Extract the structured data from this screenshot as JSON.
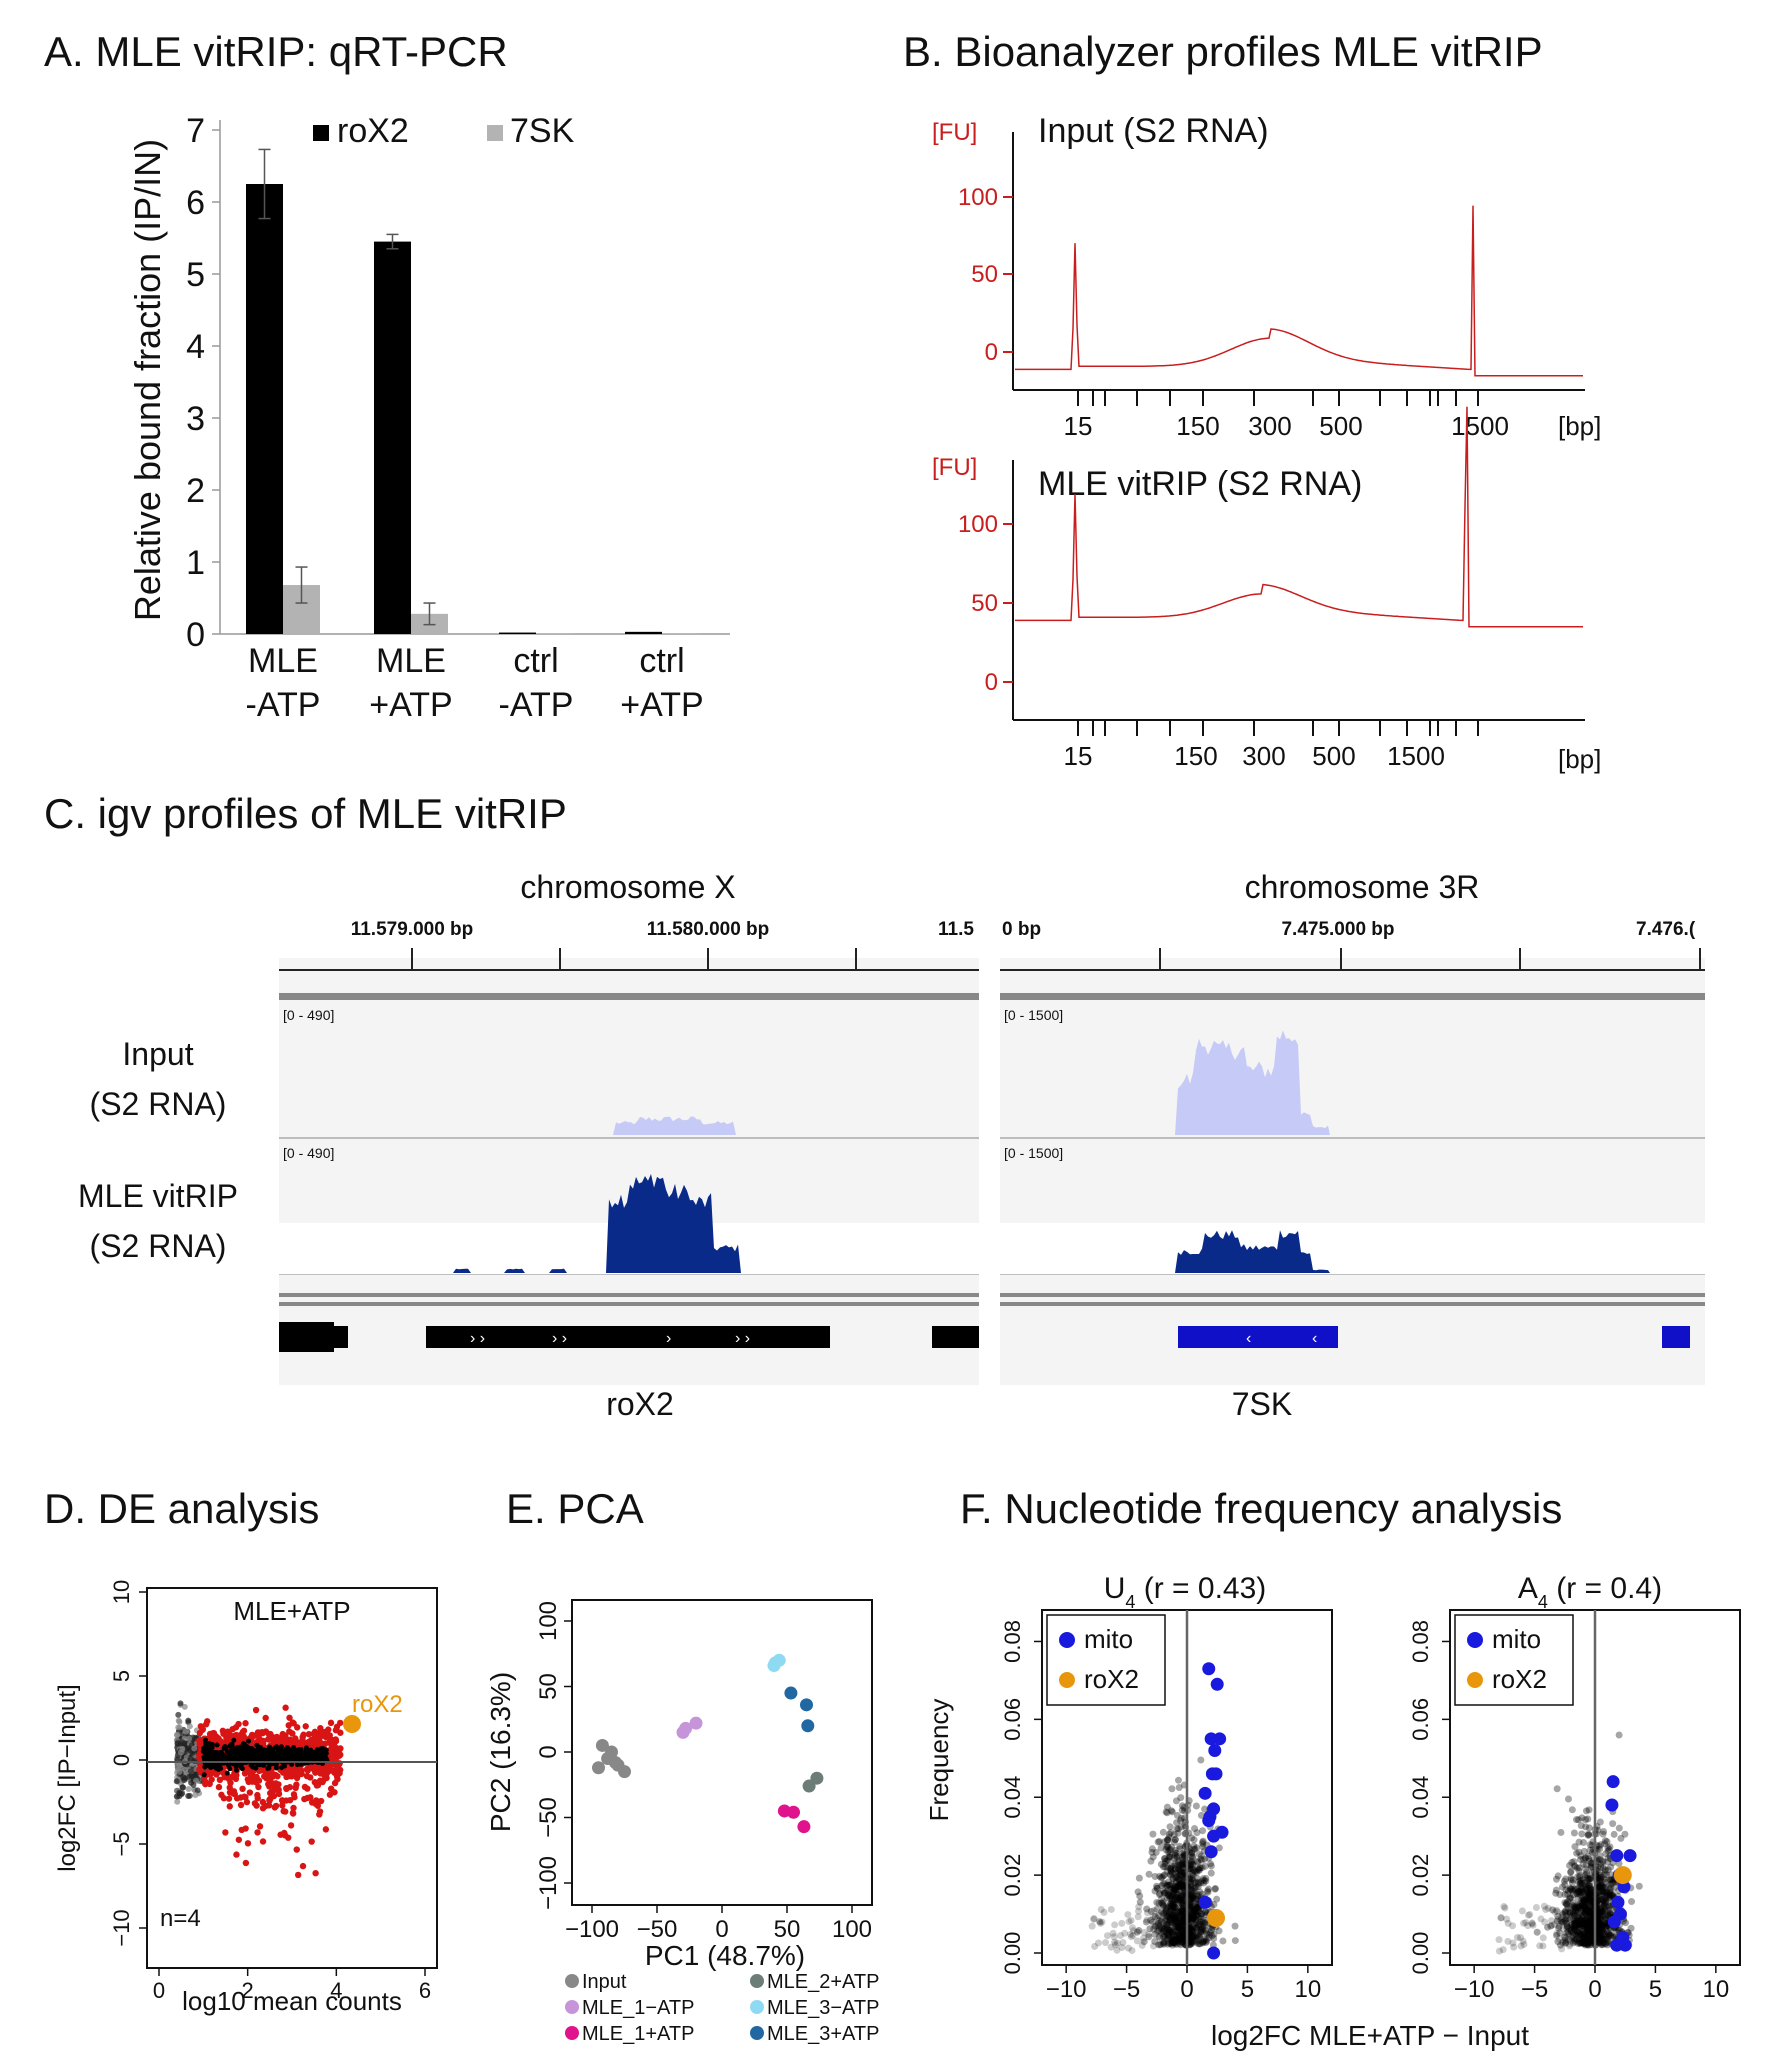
{
  "panelA": {
    "title": "A. MLE vitRIP: qRT-PCR",
    "ylabel": "Relative bound fraction (IP/IN)",
    "legend": [
      "roX2",
      "7SK"
    ],
    "yticks": [
      "0",
      "1",
      "2",
      "3",
      "4",
      "5",
      "6",
      "7"
    ],
    "groups": [
      {
        "line1": "MLE",
        "line2": "-ATP"
      },
      {
        "line1": "MLE",
        "line2": "+ATP"
      },
      {
        "line1": "ctrl",
        "line2": "-ATP"
      },
      {
        "line1": "ctrl",
        "line2": "+ATP"
      }
    ]
  },
  "panelB": {
    "title": "B. Bioanalyzer profiles MLE vitRIP",
    "fu": "[FU]",
    "bp": "[bp]",
    "top_label": "Input (S2 RNA)",
    "bottom_label": "MLE vitRIP (S2 RNA)",
    "yticks": [
      "0",
      "50",
      "100"
    ],
    "xticks": [
      "15",
      "150",
      "300",
      "500",
      "1500"
    ]
  },
  "panelC": {
    "title": "C. igv profiles of MLE vitRIP",
    "chrX": "chromosome X",
    "chr3R": "chromosome 3R",
    "coordsX": [
      "11.579.000 bp",
      "11.580.000 bp",
      "11.5"
    ],
    "coords3R": [
      "0 bp",
      "7.475.000 bp",
      "7.476.("
    ],
    "rangeX": "[0 - 490]",
    "range3R": "[0 - 1500]",
    "track1": [
      "Input",
      "(S2 RNA)"
    ],
    "track2": [
      "MLE vitRIP",
      "(S2 RNA)"
    ],
    "geneX": "roX2",
    "gene3R": "7SK"
  },
  "panelD": {
    "title": "D. DE analysis",
    "label": "MLE+ATP",
    "ylabel": "log2FC [IP−Input]",
    "xlabel": "log10 mean counts",
    "n": "n=4",
    "rox2": "roX2",
    "yticks": [
      "10",
      "5",
      "0",
      "−5",
      "−10"
    ],
    "xticks": [
      "0",
      "2",
      "4",
      "6"
    ]
  },
  "panelE": {
    "title": "E. PCA",
    "ylabel": "PC2 (16.3%)",
    "xlabel": "PC1 (48.7%)",
    "yticks": [
      "100",
      "50",
      "0",
      "−50",
      "−100"
    ],
    "xticks": [
      "−100",
      "−50",
      "0",
      "50",
      "100"
    ],
    "legend_left": [
      "Input",
      "MLE_1−ATP",
      "MLE_1+ATP"
    ],
    "legend_right": [
      "MLE_2+ATP",
      "MLE_3−ATP",
      "MLE_3+ATP"
    ]
  },
  "panelF": {
    "title": "F. Nucleotide frequency analysis",
    "ylabel": "Frequency",
    "xlabel": "log2FC MLE+ATP − Input",
    "left_title": "U",
    "left_sub": "4",
    "left_r": " (r = 0.43)",
    "right_title": "A",
    "right_sub": "4",
    "right_r": " (r = 0.4)",
    "legend": [
      "mito",
      "roX2"
    ],
    "yticks": [
      "0.00",
      "0.02",
      "0.04",
      "0.06",
      "0.08"
    ],
    "xticks": [
      "−10",
      "−5",
      "0",
      "5",
      "10"
    ]
  },
  "colors": {
    "black_bar": "#000000",
    "grey_bar": "#b3b3b3",
    "bio_red": "#c81e1e",
    "igv_light": "#c6caf6",
    "igv_dark": "#0a2a8a",
    "mito": "#1a1adf",
    "rox2": "#e8960c",
    "de_red": "#d81414"
  },
  "chart_data": [
    {
      "type": "bar",
      "title": "A. MLE vitRIP: qRT-PCR",
      "ylabel": "Relative bound fraction (IP/IN)",
      "categories": [
        "MLE -ATP",
        "MLE +ATP",
        "ctrl -ATP",
        "ctrl +ATP"
      ],
      "series": [
        {
          "name": "roX2",
          "values": [
            6.25,
            5.45,
            0.02,
            0.03
          ],
          "err": [
            0.48,
            0.1,
            0,
            0
          ]
        },
        {
          "name": "7SK",
          "values": [
            0.68,
            0.28,
            0.01,
            0.01
          ],
          "err": [
            0.25,
            0.15,
            0,
            0
          ]
        }
      ],
      "ylim": [
        0,
        7
      ]
    },
    {
      "type": "scatter",
      "title": "E. PCA",
      "xlabel": "PC1 (48.7%)",
      "ylabel": "PC2 (16.3%)",
      "xlim": [
        -110,
        110
      ],
      "ylim": [
        -110,
        110
      ],
      "series": [
        {
          "name": "Input",
          "color": "#888888",
          "x": [
            -92,
            -88,
            -85,
            -80,
            -75,
            -95,
            -82
          ],
          "y": [
            5,
            -5,
            0,
            -10,
            -15,
            -12,
            -8
          ]
        },
        {
          "name": "MLE_1−ATP",
          "color": "#c695d9",
          "x": [
            -30,
            -28,
            -20
          ],
          "y": [
            15,
            18,
            22
          ]
        },
        {
          "name": "MLE_1+ATP",
          "color": "#e0138c",
          "x": [
            48,
            55,
            63
          ],
          "y": [
            -45,
            -46,
            -57
          ]
        },
        {
          "name": "MLE_2+ATP",
          "color": "#6b7d76",
          "x": [
            67,
            73
          ],
          "y": [
            -26,
            -20
          ]
        },
        {
          "name": "MLE_3−ATP",
          "color": "#8fdaf3",
          "x": [
            41,
            44,
            40
          ],
          "y": [
            68,
            70,
            66
          ]
        },
        {
          "name": "MLE_3+ATP",
          "color": "#2168a3",
          "x": [
            53,
            65,
            66
          ],
          "y": [
            45,
            36,
            20
          ]
        }
      ]
    },
    {
      "type": "scatter",
      "title": "U4 (r = 0.43)",
      "xlabel": "log2FC MLE+ATP − Input",
      "ylabel": "Frequency",
      "xlim": [
        -12,
        12
      ],
      "ylim": [
        0,
        0.09
      ],
      "series": [
        {
          "name": "mito",
          "x": [
            1.8,
            2.5,
            2.0,
            2.7,
            2.3,
            2.1,
            2.4,
            1.5,
            2.2,
            1.9,
            2.9,
            1.8,
            2.2,
            2.0,
            1.5,
            2.2
          ],
          "y": [
            0.073,
            0.069,
            0.055,
            0.055,
            0.052,
            0.046,
            0.046,
            0.041,
            0.037,
            0.035,
            0.031,
            0.034,
            0.03,
            0.026,
            0.013,
            0.0
          ],
          "color": "#1a1adf"
        },
        {
          "name": "roX2",
          "x": [
            2.4
          ],
          "y": [
            0.009
          ],
          "color": "#e8960c"
        }
      ]
    },
    {
      "type": "scatter",
      "title": "A4 (r = 0.4)",
      "xlabel": "log2FC MLE+ATP − Input",
      "ylabel": "Frequency",
      "xlim": [
        -12,
        12
      ],
      "ylim": [
        0,
        0.09
      ],
      "series": [
        {
          "name": "mito",
          "x": [
            1.5,
            1.4,
            2.9,
            1.8,
            2.0,
            2.4,
            1.9,
            2.1,
            1.6,
            2.3,
            1.8,
            2.5
          ],
          "y": [
            0.044,
            0.038,
            0.025,
            0.025,
            0.02,
            0.017,
            0.013,
            0.01,
            0.008,
            0.004,
            0.002,
            0.002
          ],
          "color": "#1a1adf"
        },
        {
          "name": "roX2",
          "x": [
            2.3
          ],
          "y": [
            0.02
          ],
          "color": "#e8960c"
        }
      ]
    }
  ]
}
